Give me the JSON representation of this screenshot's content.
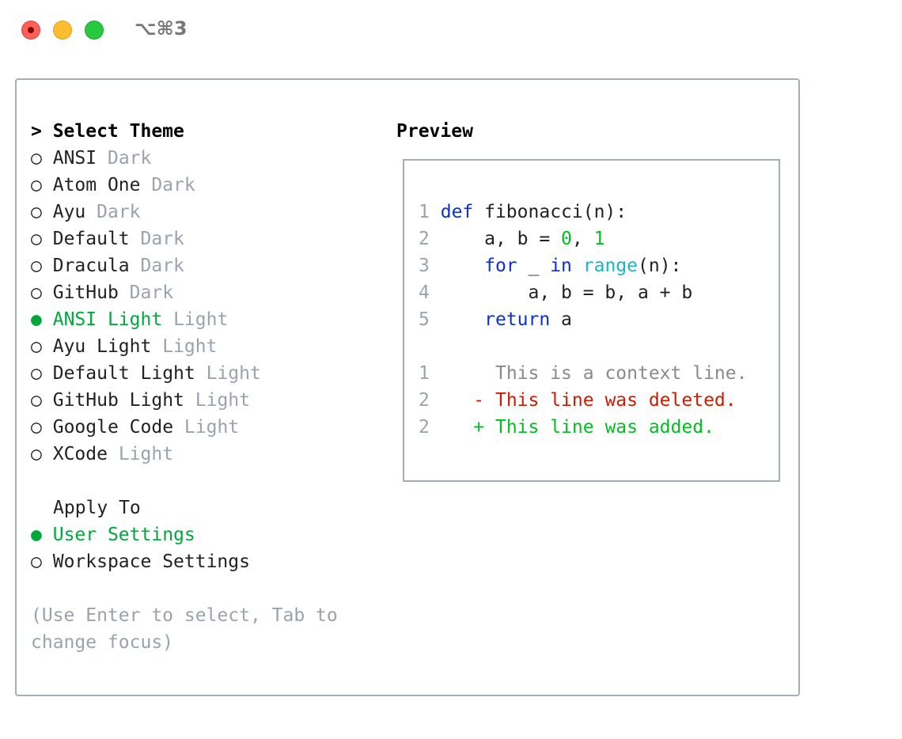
{
  "window": {
    "title": "⌥⌘3"
  },
  "theme_list": {
    "heading": "> Select Theme",
    "items": [
      {
        "marker": "○",
        "name": "ANSI",
        "type": "Dark",
        "selected": false
      },
      {
        "marker": "○",
        "name": "Atom One",
        "type": "Dark",
        "selected": false
      },
      {
        "marker": "○",
        "name": "Ayu",
        "type": "Dark",
        "selected": false
      },
      {
        "marker": "○",
        "name": "Default",
        "type": "Dark",
        "selected": false
      },
      {
        "marker": "○",
        "name": "Dracula",
        "type": "Dark",
        "selected": false
      },
      {
        "marker": "○",
        "name": "GitHub",
        "type": "Dark",
        "selected": false
      },
      {
        "marker": "●",
        "name": "ANSI Light",
        "type": "Light",
        "selected": true
      },
      {
        "marker": "○",
        "name": "Ayu Light",
        "type": "Light",
        "selected": false
      },
      {
        "marker": "○",
        "name": "Default Light",
        "type": "Light",
        "selected": false
      },
      {
        "marker": "○",
        "name": "GitHub Light",
        "type": "Light",
        "selected": false
      },
      {
        "marker": "○",
        "name": "Google Code",
        "type": "Light",
        "selected": false
      },
      {
        "marker": "○",
        "name": "XCode",
        "type": "Light",
        "selected": false
      }
    ]
  },
  "apply_to": {
    "heading": "Apply To",
    "items": [
      {
        "marker": "●",
        "label": "User Settings",
        "selected": true
      },
      {
        "marker": "○",
        "label": "Workspace Settings",
        "selected": false
      }
    ]
  },
  "help": {
    "line1": "(Use Enter to select, Tab to",
    "line2": "change focus)"
  },
  "preview": {
    "heading": "Preview",
    "code": [
      {
        "n": "1",
        "tokens": [
          {
            "t": "def",
            "c": "kw"
          },
          {
            "t": " fibonacci(n):",
            "c": ""
          }
        ]
      },
      {
        "n": "2",
        "tokens": [
          {
            "t": "    a, b = ",
            "c": ""
          },
          {
            "t": "0",
            "c": "nm"
          },
          {
            "t": ", ",
            "c": ""
          },
          {
            "t": "1",
            "c": "nm"
          }
        ]
      },
      {
        "n": "3",
        "tokens": [
          {
            "t": "    ",
            "c": ""
          },
          {
            "t": "for",
            "c": "kw"
          },
          {
            "t": " _ ",
            "c": ""
          },
          {
            "t": "in",
            "c": "kw"
          },
          {
            "t": " ",
            "c": ""
          },
          {
            "t": "range",
            "c": "fn"
          },
          {
            "t": "(n):",
            "c": ""
          }
        ]
      },
      {
        "n": "4",
        "tokens": [
          {
            "t": "        a, b = b, a + b",
            "c": ""
          }
        ]
      },
      {
        "n": "5",
        "tokens": [
          {
            "t": "    ",
            "c": ""
          },
          {
            "t": "return",
            "c": "kw"
          },
          {
            "t": " a",
            "c": ""
          }
        ]
      }
    ],
    "diff": [
      {
        "n": "1",
        "prefix": " ",
        "text": "This is a context line.",
        "kind": "ctx"
      },
      {
        "n": "2",
        "prefix": "-",
        "text": "This line was deleted.",
        "kind": "del"
      },
      {
        "n": "2",
        "prefix": "+",
        "text": "This line was added.",
        "kind": "add"
      }
    ]
  },
  "colors": {
    "selected": "#00a83c",
    "muted": "#9aa3ad",
    "keyword": "#0b2fd1",
    "number": "#00c020",
    "builtin": "#14b8c2",
    "deleted": "#d01a00",
    "added": "#00c020"
  }
}
